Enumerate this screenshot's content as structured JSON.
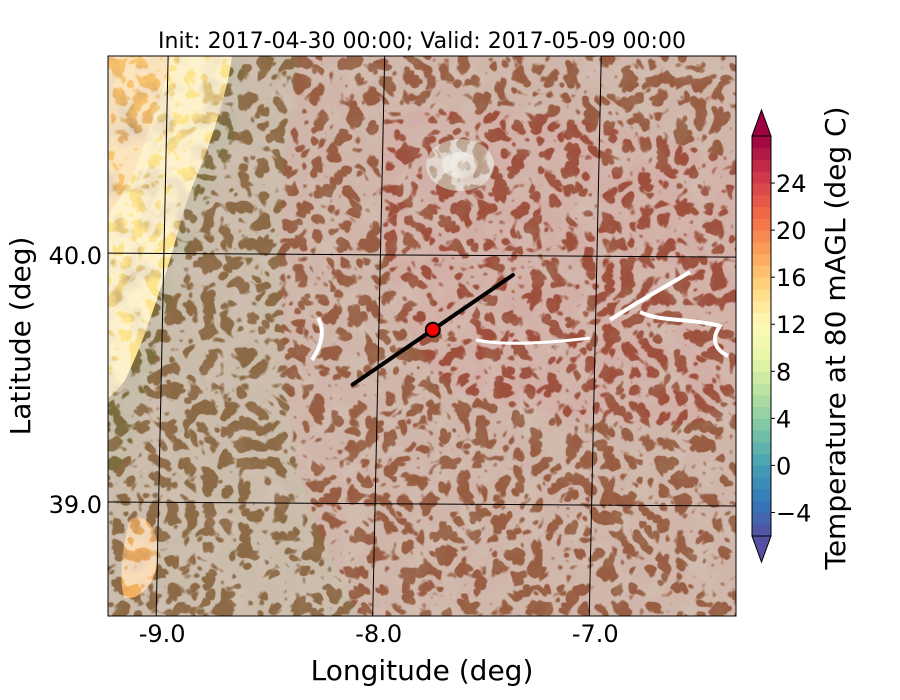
{
  "title": "Init: 2017-04-30 00:00; Valid: 2017-05-09 00:00",
  "x_axis": {
    "label": "Longitude (deg)",
    "range": [
      -9.25,
      -6.35
    ],
    "ticks": [
      {
        "value": -9.0,
        "label": "-9.0"
      },
      {
        "value": -8.0,
        "label": "-8.0"
      },
      {
        "value": -7.0,
        "label": "-7.0"
      }
    ]
  },
  "y_axis": {
    "label": "Latitude (deg)",
    "range": [
      38.55,
      40.8
    ],
    "ticks": [
      {
        "value": 40.0,
        "label": "40.0"
      },
      {
        "value": 39.0,
        "label": "39.0"
      }
    ]
  },
  "colorbar": {
    "label": "Temperature at 80 mAGL (deg C)",
    "range": [
      -6,
      28
    ],
    "extend": "both",
    "ticks": [
      {
        "value": -4,
        "label": "−4"
      },
      {
        "value": 0,
        "label": "0"
      },
      {
        "value": 4,
        "label": "4"
      },
      {
        "value": 8,
        "label": "8"
      },
      {
        "value": 12,
        "label": "12"
      },
      {
        "value": 16,
        "label": "16"
      },
      {
        "value": 20,
        "label": "20"
      },
      {
        "value": 24,
        "label": "24"
      }
    ]
  },
  "map": {
    "transect": {
      "start": [
        -8.12,
        39.48
      ],
      "end": [
        -7.38,
        39.92
      ]
    },
    "site_marker": {
      "lon": -7.75,
      "lat": 39.7
    }
  },
  "colors": {
    "ocean_warm": "#f9c46e",
    "ocean_cool": "#fde48e",
    "land_base": "#8a6c46",
    "land_warm": "#9a4a3a",
    "marker": "#ff0000"
  }
}
